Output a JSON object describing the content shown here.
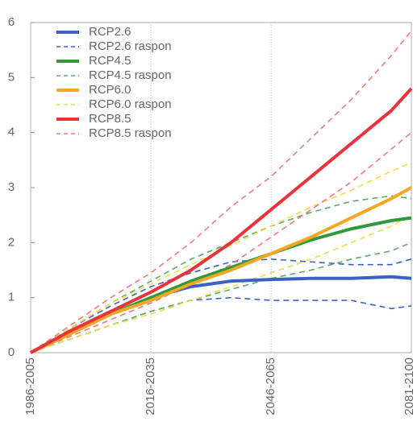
{
  "chart_data": {
    "type": "line",
    "x": [
      1995,
      2005,
      2015,
      2025,
      2035,
      2045,
      2055,
      2065,
      2075,
      2085,
      2090
    ],
    "xlim": [
      1995,
      2090
    ],
    "xticks": [
      {
        "value": 1995,
        "label": "1986-2005"
      },
      {
        "value": 2025,
        "label": "2016-2035"
      },
      {
        "value": 2055,
        "label": "2046-2065"
      },
      {
        "value": 2090,
        "label": "2081-2100"
      }
    ],
    "ylim": [
      0,
      6
    ],
    "yticks": [
      0,
      1,
      2,
      3,
      4,
      5,
      6
    ],
    "grid": true,
    "legend": "upper left",
    "series": [
      {
        "name": "RCP2.6",
        "color": "#3a62c4",
        "values": [
          0,
          0.35,
          0.7,
          1.0,
          1.2,
          1.3,
          1.33,
          1.35,
          1.35,
          1.38,
          1.35
        ]
      },
      {
        "name": "RCP2.6 raspon",
        "color": "#3a62c4",
        "dashed": true,
        "upper": [
          0,
          0.45,
          0.85,
          1.2,
          1.45,
          1.65,
          1.7,
          1.65,
          1.6,
          1.6,
          1.7
        ],
        "lower": [
          0,
          0.25,
          0.5,
          0.75,
          0.95,
          1.0,
          0.95,
          0.95,
          0.95,
          0.8,
          0.85
        ]
      },
      {
        "name": "RCP4.5",
        "color": "#2e9a3c",
        "values": [
          0,
          0.35,
          0.7,
          1.0,
          1.3,
          1.55,
          1.8,
          2.05,
          2.25,
          2.4,
          2.45
        ]
      },
      {
        "name": "RCP4.5 raspon",
        "color": "#5aaa64",
        "dashed": true,
        "upper": [
          0,
          0.45,
          0.9,
          1.3,
          1.7,
          2.0,
          2.3,
          2.55,
          2.75,
          2.85,
          2.8
        ],
        "lower": [
          0,
          0.25,
          0.5,
          0.75,
          0.95,
          1.15,
          1.35,
          1.5,
          1.7,
          1.85,
          2.0
        ]
      },
      {
        "name": "RCP6.0",
        "color": "#f5a623",
        "values": [
          0,
          0.35,
          0.7,
          0.95,
          1.25,
          1.5,
          1.8,
          2.1,
          2.45,
          2.8,
          3.0
        ]
      },
      {
        "name": "RCP6.0 raspon",
        "color": "#eedc4a",
        "dashed": true,
        "upper": [
          0,
          0.45,
          0.9,
          1.25,
          1.6,
          1.95,
          2.3,
          2.65,
          2.95,
          3.3,
          3.45
        ],
        "lower": [
          0,
          0.25,
          0.5,
          0.7,
          0.95,
          1.2,
          1.45,
          1.7,
          2.0,
          2.3,
          2.5
        ]
      },
      {
        "name": "RCP8.5",
        "color": "#e8333a",
        "values": [
          0,
          0.4,
          0.75,
          1.1,
          1.5,
          2.0,
          2.6,
          3.2,
          3.8,
          4.4,
          4.8
        ]
      },
      {
        "name": "RCP8.5 raspon",
        "color": "#ee7a82",
        "dashed": true,
        "upper": [
          0,
          0.5,
          1.0,
          1.45,
          2.0,
          2.65,
          3.2,
          3.9,
          4.6,
          5.4,
          5.85
        ],
        "lower": [
          0,
          0.3,
          0.6,
          0.9,
          1.25,
          1.6,
          2.1,
          2.6,
          3.1,
          3.7,
          4.0
        ]
      }
    ]
  }
}
